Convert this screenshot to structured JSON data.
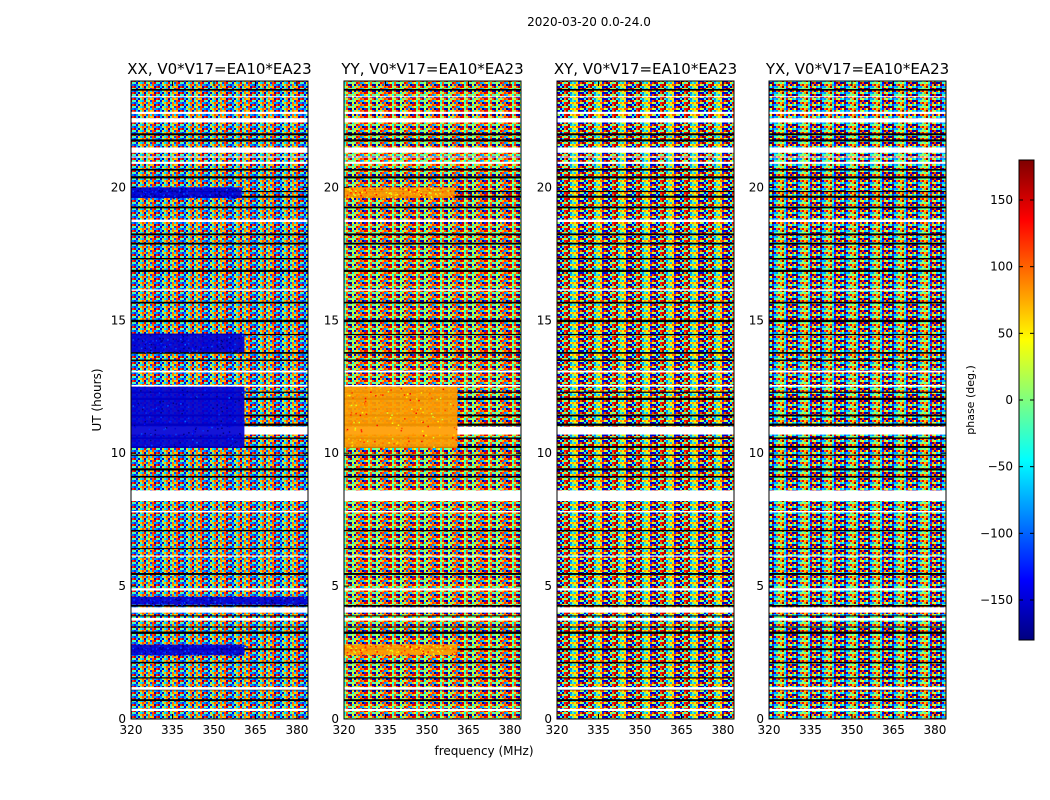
{
  "figure": {
    "suptitle": "2020-03-20 0.0-24.0"
  },
  "chart_data": {
    "type": "heatmap",
    "title": "2020-03-20 0.0-24.0",
    "xlabel": "frequency (MHz)",
    "ylabel": "UT (hours)",
    "xlim": [
      320,
      384
    ],
    "ylim": [
      0,
      24
    ],
    "x_ticks": [
      320,
      335,
      350,
      365,
      380
    ],
    "y_ticks": [
      0,
      5,
      10,
      15,
      20
    ],
    "panels": [
      {
        "name": "XX",
        "title": "XX, V0*V17=EA10*EA23",
        "dominant_phase_deg": -150
      },
      {
        "name": "YY",
        "title": "YY, V0*V17=EA10*EA23",
        "dominant_phase_deg": 80
      },
      {
        "name": "XY",
        "title": "XY, V0*V17=EA10*EA23",
        "dominant_phase_deg": null
      },
      {
        "name": "YX",
        "title": "YX, V0*V17=EA10*EA23",
        "dominant_phase_deg": null
      }
    ],
    "coherent_intervals_hours": [
      {
        "ut_range": [
          10.2,
          12.5
        ],
        "freq_range": [
          320,
          361
        ],
        "panels": [
          "XX",
          "YY"
        ]
      },
      {
        "ut_range": [
          19.6,
          20.0
        ],
        "freq_range": [
          320,
          360
        ],
        "panels": [
          "XX",
          "YY"
        ]
      },
      {
        "ut_range": [
          4.3,
          4.6
        ],
        "freq_range": [
          320,
          384
        ],
        "panels": [
          "XX"
        ]
      },
      {
        "ut_range": [
          13.8,
          14.5
        ],
        "freq_range": [
          320,
          361
        ],
        "panels": [
          "XX"
        ]
      },
      {
        "ut_range": [
          2.4,
          2.8
        ],
        "freq_range": [
          320,
          361
        ],
        "panels": [
          "XX",
          "YY"
        ]
      }
    ],
    "flagged_gaps_hours": [
      [
        21.3,
        21.5
      ],
      [
        10.7,
        11.0
      ],
      [
        8.2,
        8.6
      ],
      [
        4.0,
        4.2
      ],
      [
        3.7,
        3.8
      ],
      [
        22.5,
        22.6
      ],
      [
        1.1,
        1.2
      ]
    ],
    "colorbar": {
      "label": "phase (deg.)",
      "range": [
        -180,
        180
      ],
      "ticks": [
        -150,
        -100,
        -50,
        0,
        50,
        100,
        150
      ],
      "tick_labels": [
        "−150",
        "−100",
        "−50",
        "0",
        "50",
        "100",
        "150"
      ],
      "colormap": [
        "#00007f",
        "#0000ff",
        "#007fff",
        "#00ffff",
        "#7fff7f",
        "#ffff00",
        "#ff7f00",
        "#ff0000",
        "#7f0000"
      ]
    }
  }
}
